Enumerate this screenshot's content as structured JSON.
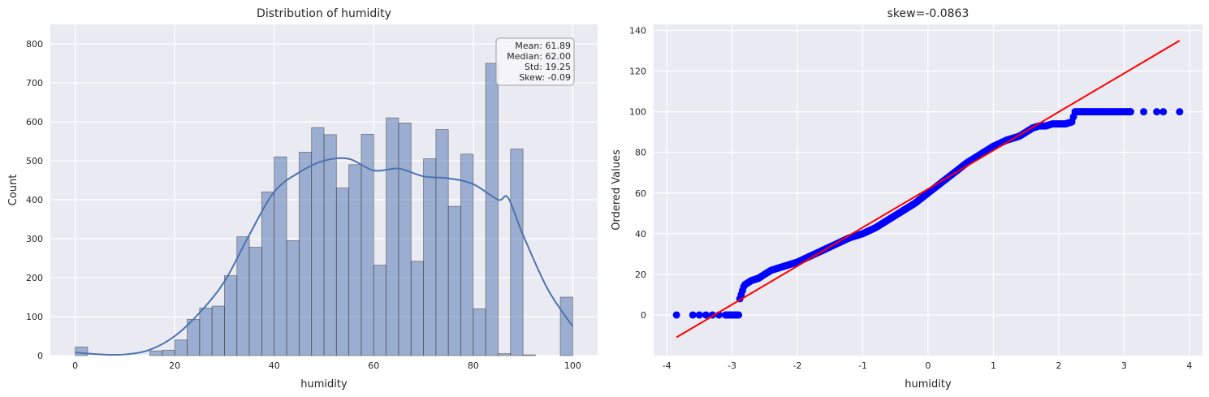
{
  "chart_data": [
    {
      "type": "bar",
      "title": "Distribution of humidity",
      "xlabel": "humidity",
      "ylabel": "Count",
      "xlim": [
        -5,
        105
      ],
      "ylim": [
        0,
        850
      ],
      "xticks": [
        0,
        20,
        40,
        60,
        80,
        100
      ],
      "yticks": [
        0,
        100,
        200,
        300,
        400,
        500,
        600,
        700,
        800
      ],
      "grid": true,
      "bin_edges": [
        0,
        2.5,
        5,
        7.5,
        10,
        12.5,
        15,
        17.5,
        20,
        22.5,
        25,
        27.5,
        30,
        32.5,
        35,
        37.5,
        40,
        42.5,
        45,
        47.5,
        50,
        52.5,
        55,
        57.5,
        60,
        62.5,
        65,
        67.5,
        70,
        72.5,
        75,
        77.5,
        80,
        82.5,
        85,
        87.5,
        90,
        92.5,
        95,
        97.5,
        100
      ],
      "values": [
        22,
        0,
        0,
        0,
        0,
        0,
        12,
        14,
        40,
        93,
        122,
        127,
        205,
        305,
        278,
        420,
        510,
        295,
        522,
        585,
        567,
        430,
        490,
        568,
        232,
        610,
        597,
        242,
        505,
        580,
        383,
        517,
        120,
        750,
        5,
        530,
        2,
        0,
        0,
        150
      ],
      "kde": {
        "x": [
          0,
          5,
          10,
          15,
          20,
          25,
          30,
          35,
          40,
          45,
          50,
          55,
          60,
          65,
          70,
          75,
          80,
          85,
          87,
          90,
          95,
          100
        ],
        "y": [
          8,
          3,
          3,
          15,
          50,
          110,
          190,
          310,
          420,
          470,
          500,
          505,
          475,
          480,
          460,
          455,
          440,
          400,
          405,
          310,
          170,
          75
        ]
      },
      "stats_box": [
        "Mean: 61.89",
        "Median: 62.00",
        "Std: 19.25",
        "Skew: -0.09"
      ],
      "stats_position": "top-right",
      "colors": {
        "bar": "#4c72b0",
        "kde": "#4c72b0",
        "background": "#eaeaf2",
        "grid": "#ffffff"
      }
    },
    {
      "type": "scatter",
      "title": "skew=-0.0863",
      "xlabel": "humidity",
      "ylabel": "Ordered Values",
      "xlim": [
        -4.2,
        4.2
      ],
      "ylim": [
        -20,
        143
      ],
      "xticks": [
        -4,
        -3,
        -2,
        -1,
        0,
        1,
        2,
        3,
        4
      ],
      "yticks": [
        0,
        20,
        40,
        60,
        80,
        100,
        120,
        140
      ],
      "grid": true,
      "points": {
        "x": [
          -3.85,
          -3.6,
          -3.5,
          -3.4,
          -3.3,
          -3.2,
          -3.1,
          -3.0,
          -2.95,
          -2.9,
          -2.88,
          -2.86,
          -2.84,
          -2.82,
          -2.8,
          -2.75,
          -2.7,
          -2.6,
          -2.5,
          -2.4,
          -2.2,
          -2.0,
          -1.8,
          -1.6,
          -1.4,
          -1.2,
          -1.0,
          -0.8,
          -0.6,
          -0.4,
          -0.2,
          0.0,
          0.2,
          0.4,
          0.6,
          0.8,
          1.0,
          1.2,
          1.4,
          1.5,
          1.6,
          1.7,
          1.8,
          1.9,
          2.0,
          2.1,
          2.2,
          2.25,
          2.3,
          2.5,
          2.7,
          2.9,
          3.1,
          3.3,
          3.5,
          3.6,
          3.85
        ],
        "y": [
          0,
          0,
          0,
          0,
          0,
          0,
          0,
          0,
          0,
          0,
          8,
          10,
          12,
          14,
          15,
          16,
          17,
          18,
          20,
          22,
          24,
          26,
          29,
          32,
          35,
          38,
          40,
          43,
          47,
          51,
          55,
          60,
          65,
          70,
          75,
          79,
          83,
          86,
          88,
          90,
          92,
          93,
          93,
          94,
          94,
          94,
          95,
          100,
          100,
          100,
          100,
          100,
          100,
          100,
          100,
          100,
          100
        ]
      },
      "fit_line": {
        "x": [
          -3.85,
          3.85
        ],
        "y": [
          -11,
          135
        ]
      },
      "colors": {
        "points": "#0000ff",
        "line": "#ff0000",
        "background": "#eaeaf2",
        "grid": "#ffffff"
      }
    }
  ]
}
